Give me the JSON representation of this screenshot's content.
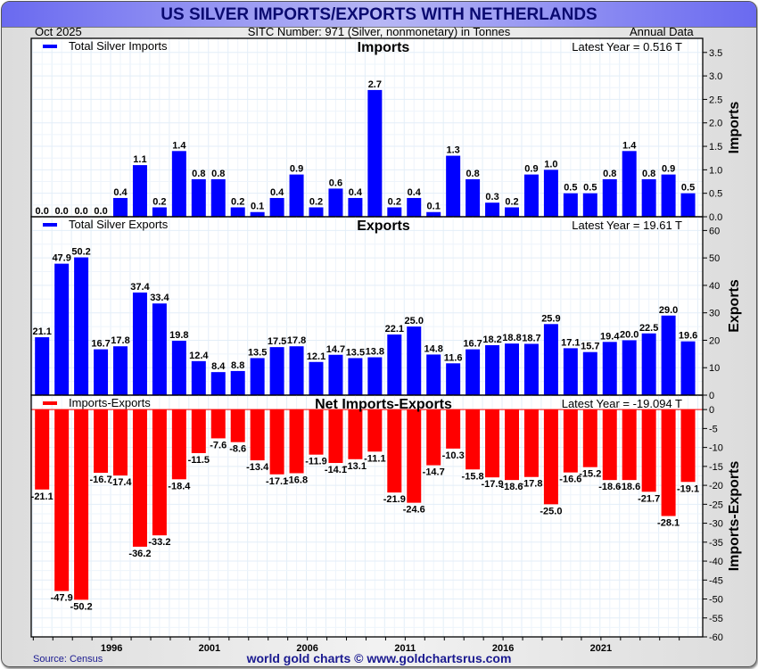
{
  "header": {
    "title": "US SILVER IMPORTS/EXPORTS WITH NETHERLANDS",
    "date": "Oct  2025",
    "subtitle": "SITC Number: 971 (Silver, nonmonetary) in Tonnes",
    "frequency": "Annual Data"
  },
  "footer": {
    "source": "Source: Census",
    "credit": "world gold charts © www.goldchartsrus.com"
  },
  "colors": {
    "imports": "#0000ff",
    "exports": "#0000ff",
    "net": "#ff0000",
    "title_bar": "#6a6af0",
    "title_text": "#0a0a70"
  },
  "chart_data": [
    {
      "type": "bar",
      "title": "Imports",
      "legend": "Total Silver Imports",
      "legend_position": "top-left",
      "annotation": "Latest Year = 0.516 T",
      "ylabel": "Imports",
      "ylim": [
        0,
        3.8
      ],
      "yticks": [
        0.0,
        0.5,
        1.0,
        1.5,
        2.0,
        2.5,
        3.0,
        3.5
      ],
      "ytick_labels": [
        "0.0",
        "0.5",
        "1.0",
        "1.5",
        "2.0",
        "2.5",
        "3.0",
        "3.5"
      ],
      "grid": true,
      "x": [
        1992,
        1993,
        1994,
        1995,
        1996,
        1997,
        1998,
        1999,
        2000,
        2001,
        2002,
        2003,
        2004,
        2005,
        2006,
        2007,
        2008,
        2009,
        2010,
        2011,
        2012,
        2013,
        2014,
        2015,
        2016,
        2017,
        2018,
        2019,
        2020,
        2021,
        2022,
        2023,
        2024,
        2025
      ],
      "values": [
        0.0,
        0.0,
        0.0,
        0.0,
        0.4,
        1.1,
        0.2,
        1.4,
        0.8,
        0.8,
        0.2,
        0.1,
        0.4,
        0.9,
        0.2,
        0.6,
        0.4,
        2.7,
        0.2,
        0.4,
        0.1,
        1.3,
        0.8,
        0.3,
        0.2,
        0.9,
        1.0,
        0.5,
        0.5,
        0.8,
        1.4,
        0.8,
        0.9,
        0.5
      ]
    },
    {
      "type": "bar",
      "title": "Exports",
      "legend": "Total Silver Exports",
      "legend_position": "top-left",
      "annotation": "Latest Year = 19.61 T",
      "ylabel": "Exports",
      "ylim": [
        0,
        65
      ],
      "yticks": [
        0,
        10,
        20,
        30,
        40,
        50,
        60
      ],
      "ytick_labels": [
        "0",
        "10",
        "20",
        "30",
        "40",
        "50",
        "60"
      ],
      "grid": true,
      "x": [
        1992,
        1993,
        1994,
        1995,
        1996,
        1997,
        1998,
        1999,
        2000,
        2001,
        2002,
        2003,
        2004,
        2005,
        2006,
        2007,
        2008,
        2009,
        2010,
        2011,
        2012,
        2013,
        2014,
        2015,
        2016,
        2017,
        2018,
        2019,
        2020,
        2021,
        2022,
        2023,
        2024,
        2025
      ],
      "values": [
        21.1,
        47.9,
        50.2,
        16.7,
        17.8,
        37.4,
        33.4,
        19.8,
        12.4,
        8.4,
        8.8,
        13.5,
        17.5,
        17.8,
        12.1,
        14.7,
        13.5,
        13.8,
        22.1,
        25.0,
        14.8,
        11.6,
        16.7,
        18.2,
        18.8,
        18.7,
        25.9,
        17.1,
        15.7,
        19.4,
        20.0,
        22.5,
        29.0,
        19.6
      ]
    },
    {
      "type": "bar",
      "title": "Net Imports-Exports",
      "legend": "Imports-Exports",
      "legend_position": "top-left",
      "annotation": "Latest Year = -19.094 T",
      "ylabel": "Imports-Exports",
      "ylim": [
        -60,
        3.8
      ],
      "yticks": [
        0,
        -5,
        -10,
        -15,
        -20,
        -25,
        -30,
        -35,
        -40,
        -45,
        -50,
        -55,
        -60
      ],
      "ytick_labels": [
        "0",
        "-5",
        "-10",
        "-15",
        "-20",
        "-25",
        "-30",
        "-35",
        "-40",
        "-45",
        "-50",
        "-55",
        "-60"
      ],
      "grid": true,
      "x": [
        1992,
        1993,
        1994,
        1995,
        1996,
        1997,
        1998,
        1999,
        2000,
        2001,
        2002,
        2003,
        2004,
        2005,
        2006,
        2007,
        2008,
        2009,
        2010,
        2011,
        2012,
        2013,
        2014,
        2015,
        2016,
        2017,
        2018,
        2019,
        2020,
        2021,
        2022,
        2023,
        2024,
        2025
      ],
      "values": [
        -21.1,
        -47.9,
        -50.2,
        -16.7,
        -17.4,
        -36.2,
        -33.2,
        -18.4,
        -11.5,
        -7.6,
        -8.6,
        -13.4,
        -17.1,
        -16.8,
        -11.9,
        -14.1,
        -13.1,
        -11.1,
        -21.9,
        -24.6,
        -14.7,
        -10.3,
        -15.8,
        -17.9,
        -18.6,
        -17.8,
        -25.0,
        -16.6,
        -15.2,
        -18.6,
        -18.6,
        -21.7,
        -28.1,
        -19.1
      ]
    }
  ],
  "xaxis": {
    "tick_labels": [
      "1996",
      "2001",
      "2006",
      "2011",
      "2016",
      "2021"
    ],
    "tick_years": [
      1996,
      2001,
      2006,
      2011,
      2016,
      2021
    ]
  }
}
